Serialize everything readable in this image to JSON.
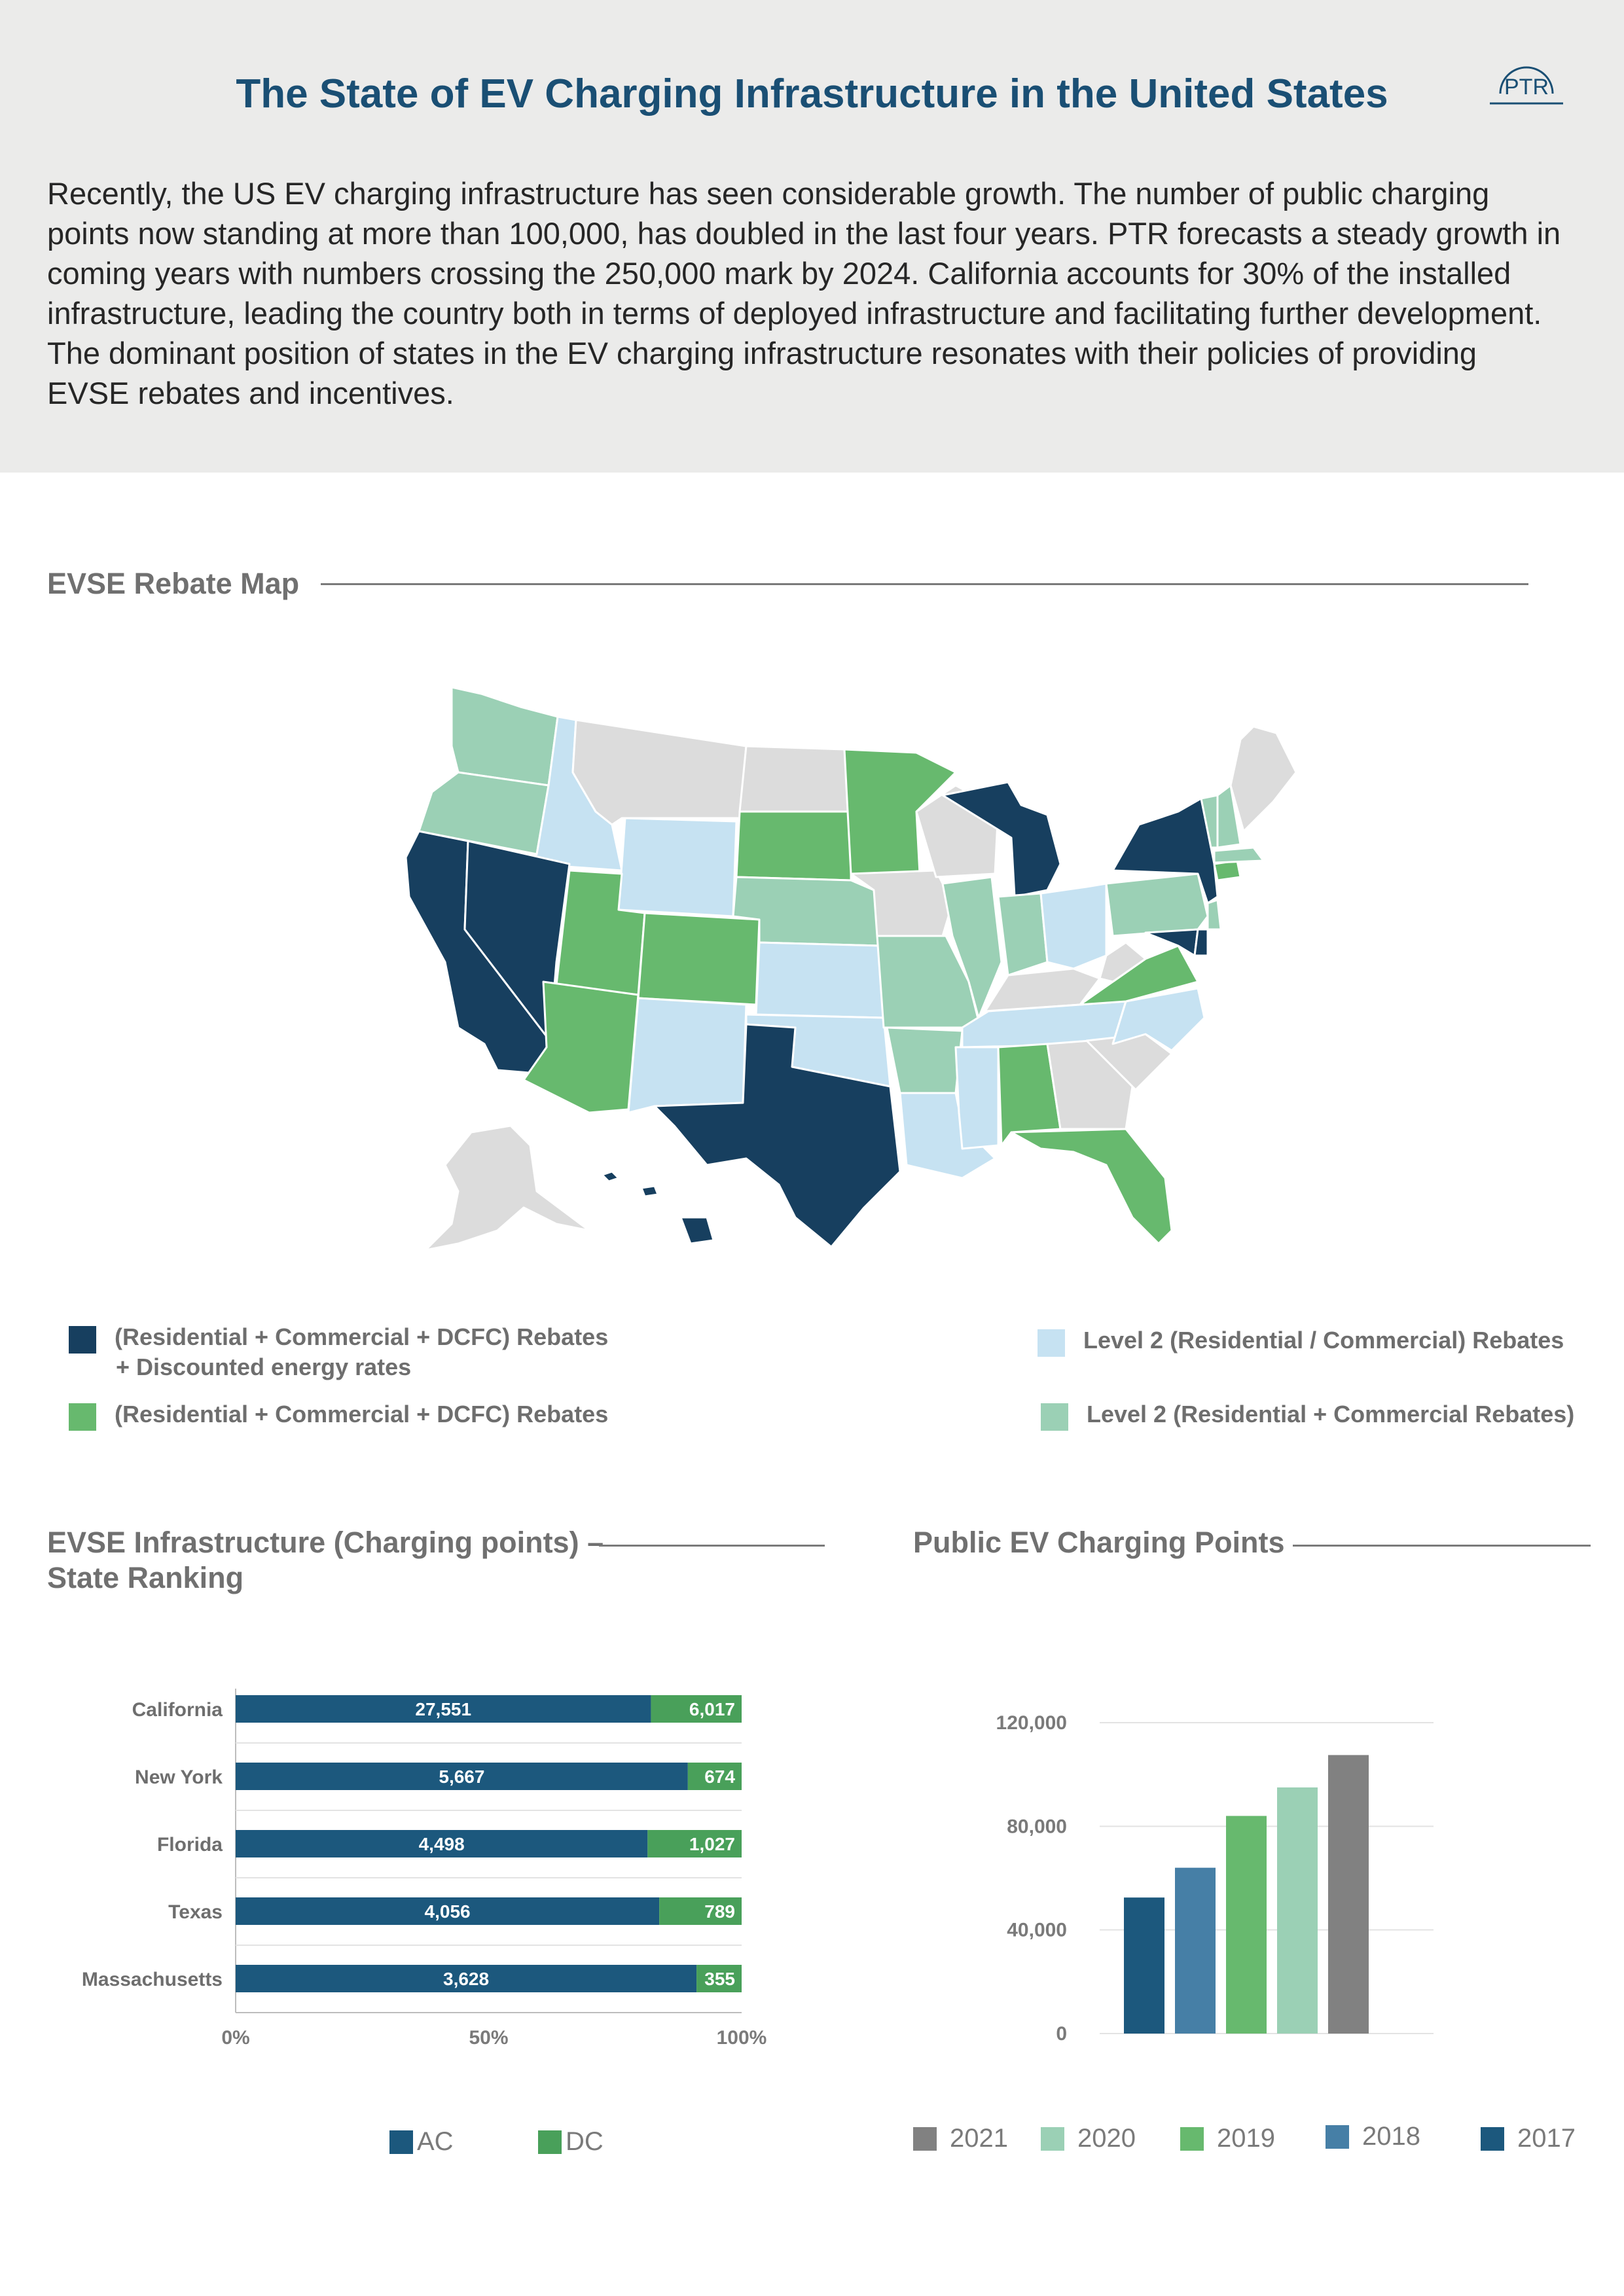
{
  "header": {
    "title": "The State of EV Charging Infrastructure in the United States",
    "logo_text": "PTR",
    "intro": "Recently, the US EV charging infrastructure has seen considerable growth. The number of public charging points now standing at more than 100,000, has doubled in the last four years. PTR forecasts a steady growth in coming years with numbers crossing the 250,000 mark by 2024. California accounts for 30% of the installed infrastructure,  leading the country both in terms of deployed infrastructure and facilitating further development. The dominant position of states in the EV charging infrastructure resonates with their policies of providing EVSE rebates and incentives."
  },
  "map_section": {
    "title": "EVSE Rebate Map",
    "legend": [
      {
        "label_line1": "(Residential + Commercial + DCFC) Rebates",
        "label_line2": "+ Discounted energy rates",
        "color": "#173f5f"
      },
      {
        "label_line1": "Level 2 (Residential / Commercial) Rebates",
        "label_line2": "",
        "color": "#c6e2f2"
      },
      {
        "label_line1": "(Residential + Commercial + DCFC) Rebates",
        "label_line2": "",
        "color": "#67b96e"
      },
      {
        "label_line1": "Level 2 (Residential + Commercial Rebates)",
        "label_line2": "",
        "color": "#9bd0b5"
      }
    ],
    "other_color": "#dcdcdc"
  },
  "ranking_section": {
    "title_line1": "EVSE Infrastructure (Charging points) –",
    "title_line2": "State Ranking"
  },
  "public_section": {
    "title": "Public EV Charging Points"
  },
  "chart_data": [
    {
      "type": "bar",
      "orientation": "horizontal",
      "stacking": "percent",
      "categories": [
        "California",
        "New York",
        "Florida",
        "Texas",
        "Massachusetts"
      ],
      "series": [
        {
          "name": "AC",
          "values": [
            27551,
            5667,
            4498,
            4056,
            3628
          ],
          "labels": [
            "27,551",
            "5,667",
            "4,498",
            "4,056",
            "3,628"
          ],
          "color": "#1c587d"
        },
        {
          "name": "DC",
          "values": [
            6017,
            674,
            1027,
            789,
            355
          ],
          "labels": [
            "6,017",
            "674",
            "1,027",
            "789",
            "355"
          ],
          "color": "#49a05a"
        }
      ],
      "x_ticks": [
        "0%",
        "50%",
        "100%"
      ],
      "xlim": [
        0,
        100
      ],
      "legend_position": "bottom"
    },
    {
      "type": "bar",
      "categories": [
        "2017",
        "2018",
        "2019",
        "2020",
        "2021"
      ],
      "values": [
        52500,
        64000,
        84000,
        95000,
        107500
      ],
      "colors": [
        "#1c587d",
        "#467fa6",
        "#67b96e",
        "#9bd0b5",
        "#818181"
      ],
      "y_ticks": [
        "0",
        "40,000",
        "80,000",
        "120,000"
      ],
      "ylim": [
        0,
        120000
      ],
      "grid": true,
      "legend_order": [
        "2021",
        "2020",
        "2019",
        "2018",
        "2017"
      ],
      "legend_position": "bottom"
    }
  ]
}
